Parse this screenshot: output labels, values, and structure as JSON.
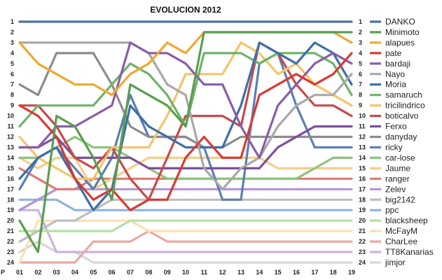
{
  "chart_data": {
    "type": "line",
    "title": "EVOLUCION 2012",
    "xlabel": "",
    "ylabel": "",
    "x_axis_prefix": "P",
    "categories": [
      "01",
      "02",
      "03",
      "04",
      "05",
      "06",
      "07",
      "08",
      "09",
      "10",
      "11",
      "12",
      "13",
      "14",
      "15",
      "16",
      "17",
      "18",
      "19"
    ],
    "ylim": [
      1,
      24
    ],
    "y_inverted": true,
    "yticks": [
      1,
      2,
      3,
      4,
      5,
      6,
      7,
      8,
      9,
      10,
      11,
      12,
      13,
      14,
      15,
      16,
      17,
      18,
      19,
      20,
      21,
      22,
      23,
      24
    ],
    "grid": false,
    "legend_position": "right",
    "series": [
      {
        "name": "DANKO",
        "color": "#4a6fa5",
        "values": [
          1,
          1,
          1,
          1,
          1,
          1,
          1,
          1,
          1,
          1,
          1,
          1,
          1,
          1,
          1,
          1,
          1,
          1,
          1
        ]
      },
      {
        "name": "Minimoto",
        "color": "#5a9e4f",
        "values": [
          20,
          23,
          10,
          11,
          14,
          18,
          7,
          8,
          9,
          11,
          2,
          2,
          2,
          2,
          2,
          2,
          2,
          2,
          2
        ]
      },
      {
        "name": "alapues",
        "color": "#f0a830",
        "values": [
          3,
          5,
          6,
          7,
          7,
          8,
          6,
          5,
          3,
          4,
          2,
          2,
          2,
          2,
          2,
          2,
          2,
          2,
          3
        ]
      },
      {
        "name": "pate",
        "color": "#d93a33",
        "values": [
          9,
          10,
          12,
          16,
          18,
          17,
          19,
          18,
          18,
          14,
          12,
          14,
          14,
          8,
          7,
          6,
          7,
          6,
          4
        ]
      },
      {
        "name": "bardaji",
        "color": "#8a5da8",
        "values": [
          13,
          13,
          11,
          11,
          10,
          9,
          3,
          4,
          4,
          5,
          7,
          7,
          11,
          14,
          9,
          7,
          5,
          4,
          5
        ]
      },
      {
        "name": "Nayo",
        "color": "#a8a8a8",
        "values": [
          3,
          3,
          3,
          3,
          3,
          3,
          3,
          4,
          7,
          8,
          15,
          17,
          15,
          14,
          11,
          9,
          8,
          8,
          6
        ]
      },
      {
        "name": "Moria",
        "color": "#3d6ea8",
        "values": [
          16,
          14,
          13,
          16,
          19,
          17,
          9,
          11,
          12,
          13,
          13,
          13,
          9,
          3,
          4,
          5,
          3,
          4,
          7
        ]
      },
      {
        "name": "samaruch",
        "color": "#6fb36a",
        "values": [
          11,
          9,
          9,
          9,
          9,
          7,
          5,
          6,
          8,
          11,
          4,
          4,
          4,
          5,
          4,
          4,
          4,
          5,
          8
        ]
      },
      {
        "name": "tricilindrico",
        "color": "#f5c46a",
        "values": [
          12,
          14,
          15,
          16,
          16,
          13,
          13,
          13,
          10,
          6,
          6,
          6,
          3,
          4,
          6,
          5,
          7,
          8,
          9
        ]
      },
      {
        "name": "boticalvo",
        "color": "#c94a48",
        "values": [
          9,
          9,
          11,
          14,
          15,
          13,
          16,
          18,
          14,
          10,
          10,
          10,
          11,
          3,
          4,
          7,
          9,
          9,
          10
        ]
      },
      {
        "name": "Ferxo",
        "color": "#7b4f9d",
        "values": [
          13,
          13,
          12,
          14,
          14,
          14,
          14,
          15,
          15,
          15,
          15,
          15,
          15,
          15,
          13,
          12,
          11,
          11,
          11
        ]
      },
      {
        "name": "danyday",
        "color": "#8c8c8c",
        "values": [
          7,
          8,
          4,
          4,
          4,
          7,
          11,
          12,
          12,
          12,
          13,
          13,
          12,
          12,
          12,
          12,
          12,
          12,
          12
        ]
      },
      {
        "name": "ricky",
        "color": "#5b7fb5",
        "values": [
          17,
          14,
          13,
          15,
          17,
          14,
          8,
          12,
          12,
          12,
          13,
          18,
          18,
          5,
          4,
          9,
          13,
          13,
          13
        ]
      },
      {
        "name": "car-lose",
        "color": "#8cc47a",
        "values": [
          14,
          14,
          13,
          12,
          13,
          13,
          14,
          15,
          16,
          16,
          16,
          16,
          16,
          16,
          16,
          16,
          15,
          14,
          14
        ]
      },
      {
        "name": "Jaume",
        "color": "#f7cd8c",
        "values": [
          14,
          15,
          14,
          14,
          17,
          16,
          15,
          14,
          14,
          14,
          14,
          14,
          14,
          14,
          15,
          15,
          15,
          15,
          15
        ]
      },
      {
        "name": "ranger",
        "color": "#e07a72",
        "values": [
          15,
          16,
          17,
          17,
          16,
          16,
          16,
          16,
          16,
          16,
          16,
          16,
          16,
          16,
          16,
          16,
          16,
          16,
          16
        ]
      },
      {
        "name": "Zelev",
        "color": "#b394d1",
        "values": [
          19,
          18,
          17,
          17,
          17,
          17,
          17,
          17,
          17,
          17,
          17,
          17,
          17,
          17,
          17,
          17,
          17,
          17,
          17
        ]
      },
      {
        "name": "big2142",
        "color": "#bdbdbd",
        "values": [
          22,
          21,
          20,
          20,
          19,
          18,
          18,
          18,
          18,
          18,
          18,
          18,
          18,
          18,
          18,
          18,
          18,
          18,
          18
        ]
      },
      {
        "name": "ppc",
        "color": "#8eb4dd",
        "values": [
          18,
          18,
          18,
          19,
          19,
          19,
          19,
          19,
          19,
          19,
          19,
          19,
          19,
          19,
          19,
          19,
          19,
          19,
          19
        ]
      },
      {
        "name": "blacksheep",
        "color": "#b5dfa6",
        "values": [
          21,
          21,
          21,
          21,
          21,
          21,
          20,
          20,
          20,
          20,
          20,
          20,
          20,
          20,
          20,
          20,
          20,
          20,
          20
        ]
      },
      {
        "name": "McFayM",
        "color": "#fbe0b0",
        "values": [
          24,
          20,
          20,
          20,
          20,
          20,
          20,
          21,
          21,
          21,
          21,
          21,
          21,
          21,
          21,
          21,
          21,
          21,
          21
        ]
      },
      {
        "name": "CharLee",
        "color": "#eba8a3",
        "values": [
          24,
          24,
          24,
          24,
          22,
          22,
          22,
          21,
          22,
          22,
          22,
          22,
          22,
          22,
          22,
          22,
          22,
          22,
          22
        ]
      },
      {
        "name": "TT8Kanarias",
        "color": "#c9b3e0",
        "values": [
          19,
          19,
          23,
          23,
          23,
          23,
          23,
          23,
          23,
          23,
          23,
          23,
          23,
          23,
          23,
          23,
          23,
          23,
          23
        ]
      },
      {
        "name": "jimjor",
        "color": "#d6d6d6",
        "values": [
          23,
          22,
          23,
          23,
          24,
          24,
          24,
          24,
          24,
          24,
          24,
          24,
          24,
          24,
          24,
          24,
          24,
          24,
          24
        ]
      }
    ]
  }
}
